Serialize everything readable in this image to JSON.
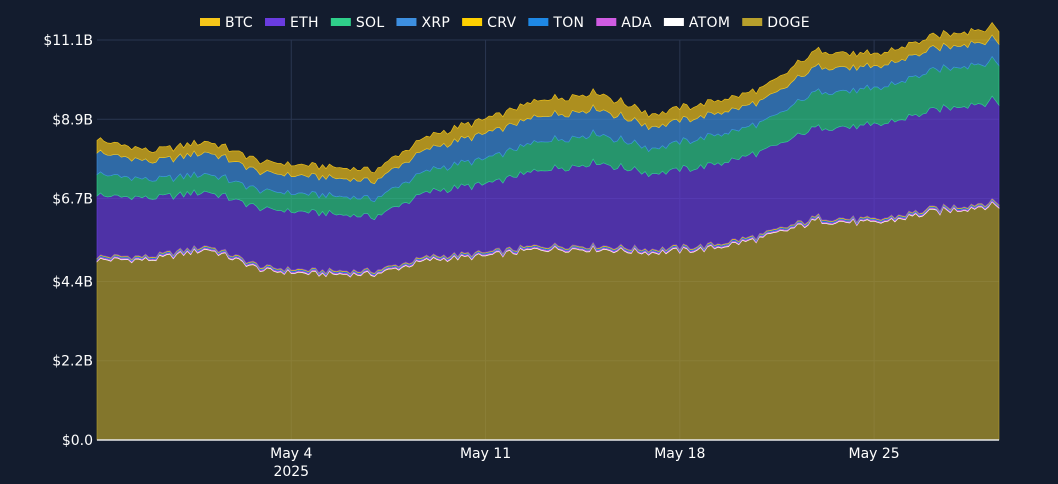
{
  "chart_data": {
    "type": "area",
    "stacked": true,
    "x_start": "2025-04-27",
    "x_end": "2025-05-29T12:00",
    "x_tick_labels": [
      "May 4",
      "May 11",
      "May 18",
      "May 25"
    ],
    "x_tick_dates": [
      "2025-05-04",
      "2025-05-11",
      "2025-05-18",
      "2025-05-25"
    ],
    "x_year_label": "2025",
    "y_tick_labels": [
      "$0.0",
      "$2.2B",
      "$4.4B",
      "$6.7B",
      "$8.9B",
      "$11.1B"
    ],
    "y_tick_values": [
      0,
      2.2,
      4.4,
      6.7,
      8.9,
      11.1
    ],
    "ylim": [
      0,
      11.1
    ],
    "y_unit": "USD billions",
    "grid": true,
    "legend_position": "top",
    "x_dates": [
      "2025-04-27",
      "2025-04-29",
      "2025-05-01",
      "2025-05-03",
      "2025-05-05",
      "2025-05-07",
      "2025-05-09",
      "2025-05-11",
      "2025-05-13",
      "2025-05-15",
      "2025-05-17",
      "2025-05-19",
      "2025-05-21",
      "2025-05-23",
      "2025-05-25",
      "2025-05-27",
      "2025-05-29"
    ],
    "series": [
      {
        "name": "DOGE",
        "color": "#b8a02c",
        "values": [
          5.0,
          5.0,
          5.3,
          4.7,
          4.6,
          4.6,
          5.0,
          5.1,
          5.3,
          5.3,
          5.2,
          5.3,
          5.6,
          6.1,
          6.0,
          6.3,
          6.5
        ]
      },
      {
        "name": "ATOM",
        "color": "#ffffff",
        "values": [
          0.02,
          0.02,
          0.02,
          0.02,
          0.02,
          0.02,
          0.02,
          0.02,
          0.02,
          0.02,
          0.02,
          0.02,
          0.02,
          0.02,
          0.02,
          0.02,
          0.02
        ]
      },
      {
        "name": "ADA",
        "color": "#d05ce3",
        "values": [
          0.03,
          0.03,
          0.03,
          0.03,
          0.03,
          0.03,
          0.03,
          0.03,
          0.03,
          0.03,
          0.03,
          0.03,
          0.03,
          0.03,
          0.03,
          0.03,
          0.03
        ]
      },
      {
        "name": "TON",
        "color": "#1e88e5",
        "values": [
          0.03,
          0.03,
          0.03,
          0.03,
          0.03,
          0.03,
          0.03,
          0.03,
          0.03,
          0.03,
          0.03,
          0.03,
          0.03,
          0.03,
          0.03,
          0.03,
          0.03
        ]
      },
      {
        "name": "CRV",
        "color": "#ffd000",
        "values": [
          0.02,
          0.02,
          0.02,
          0.02,
          0.02,
          0.02,
          0.02,
          0.02,
          0.02,
          0.02,
          0.02,
          0.02,
          0.02,
          0.02,
          0.02,
          0.02,
          0.02
        ]
      },
      {
        "name": "ETH",
        "color": "#6a3ce0",
        "values": [
          1.7,
          1.6,
          1.5,
          1.6,
          1.6,
          1.5,
          1.8,
          1.9,
          2.1,
          2.3,
          2.1,
          2.2,
          2.3,
          2.5,
          2.6,
          2.7,
          2.8
        ]
      },
      {
        "name": "SOL",
        "color": "#2fcf8a",
        "values": [
          0.6,
          0.5,
          0.5,
          0.5,
          0.5,
          0.5,
          0.6,
          0.7,
          0.8,
          0.8,
          0.7,
          0.8,
          0.8,
          1.0,
          1.0,
          1.1,
          1.1
        ]
      },
      {
        "name": "XRP",
        "color": "#3d8fe0",
        "values": [
          0.6,
          0.5,
          0.6,
          0.5,
          0.5,
          0.5,
          0.6,
          0.7,
          0.7,
          0.7,
          0.6,
          0.6,
          0.6,
          0.7,
          0.6,
          0.6,
          0.6
        ]
      },
      {
        "name": "BTC",
        "color": "#f6c619",
        "values": [
          0.35,
          0.3,
          0.3,
          0.3,
          0.3,
          0.3,
          0.35,
          0.4,
          0.45,
          0.45,
          0.35,
          0.35,
          0.35,
          0.45,
          0.35,
          0.35,
          0.35
        ]
      }
    ],
    "legend_order": [
      "BTC",
      "ETH",
      "SOL",
      "XRP",
      "CRV",
      "TON",
      "ADA",
      "ATOM",
      "DOGE"
    ]
  }
}
